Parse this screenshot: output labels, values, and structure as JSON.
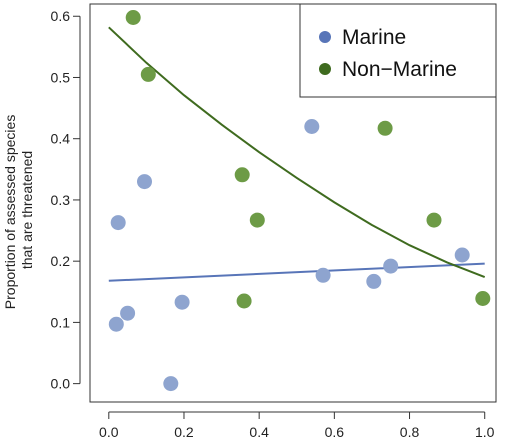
{
  "chart_data": {
    "type": "scatter",
    "ylabel_lines": [
      "Proportion of assessed species",
      "that are threatened"
    ],
    "xlim": [
      -0.05,
      1.03
    ],
    "ylim": [
      -0.03,
      0.62
    ],
    "x_ticks": [
      "0.0",
      "0.2",
      "0.4",
      "0.6",
      "0.8",
      "1.0"
    ],
    "y_ticks": [
      "0.0",
      "0.1",
      "0.2",
      "0.3",
      "0.4",
      "0.5",
      "0.6"
    ],
    "grid": false,
    "legend": {
      "position": "top-right"
    },
    "series": [
      {
        "name": "Marine",
        "color": "#8ea4cf",
        "line_color": "#5875b8",
        "points": [
          {
            "x": 0.02,
            "y": 0.097
          },
          {
            "x": 0.025,
            "y": 0.263
          },
          {
            "x": 0.05,
            "y": 0.115
          },
          {
            "x": 0.095,
            "y": 0.33
          },
          {
            "x": 0.165,
            "y": 0.0
          },
          {
            "x": 0.195,
            "y": 0.133
          },
          {
            "x": 0.54,
            "y": 0.42
          },
          {
            "x": 0.57,
            "y": 0.177
          },
          {
            "x": 0.705,
            "y": 0.167
          },
          {
            "x": 0.75,
            "y": 0.192
          },
          {
            "x": 0.94,
            "y": 0.21
          }
        ],
        "fit": [
          {
            "x": 0.0,
            "y": 0.168
          },
          {
            "x": 1.0,
            "y": 0.196
          }
        ]
      },
      {
        "name": "Non−Marine",
        "color": "#6d9b46",
        "line_color": "#3f6b1f",
        "points": [
          {
            "x": 0.065,
            "y": 0.598
          },
          {
            "x": 0.105,
            "y": 0.505
          },
          {
            "x": 0.355,
            "y": 0.341
          },
          {
            "x": 0.36,
            "y": 0.135
          },
          {
            "x": 0.395,
            "y": 0.267
          },
          {
            "x": 0.735,
            "y": 0.417
          },
          {
            "x": 0.865,
            "y": 0.267
          },
          {
            "x": 0.995,
            "y": 0.139
          }
        ],
        "fit": [
          {
            "x": 0.0,
            "y": 0.582
          },
          {
            "x": 0.1,
            "y": 0.524
          },
          {
            "x": 0.2,
            "y": 0.471
          },
          {
            "x": 0.3,
            "y": 0.423
          },
          {
            "x": 0.4,
            "y": 0.378
          },
          {
            "x": 0.5,
            "y": 0.336
          },
          {
            "x": 0.6,
            "y": 0.296
          },
          {
            "x": 0.7,
            "y": 0.259
          },
          {
            "x": 0.8,
            "y": 0.226
          },
          {
            "x": 0.9,
            "y": 0.198
          },
          {
            "x": 1.0,
            "y": 0.174
          }
        ]
      }
    ]
  }
}
